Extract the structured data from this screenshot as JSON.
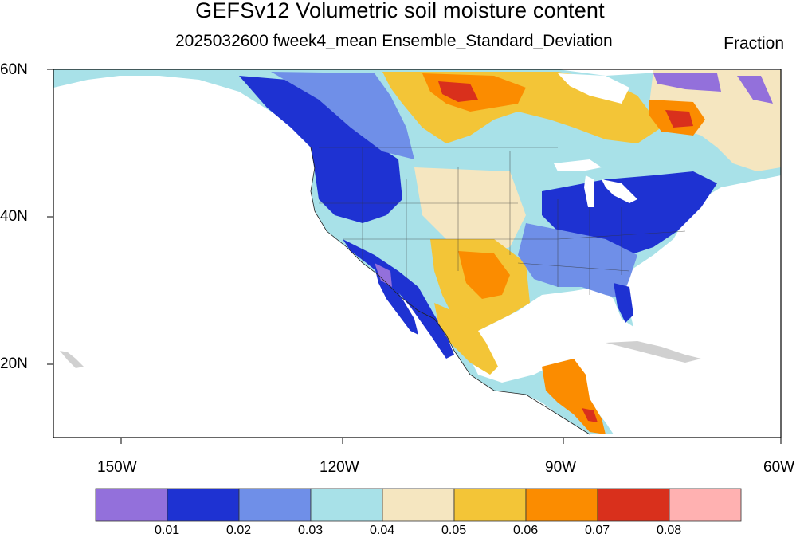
{
  "header": {
    "title": "GEFSv12 Volumetric soil moisture content",
    "subtitle": "2025032600 fweek4_mean Ensemble_Standard_Deviation",
    "units": "Fraction"
  },
  "axes": {
    "lat_labels": [
      "60N",
      "40N",
      "20N"
    ],
    "lon_labels": [
      "150W",
      "120W",
      "90W",
      "60W"
    ]
  },
  "colorbar": {
    "colors": [
      "#9370db",
      "#1e32d2",
      "#6f8fe8",
      "#a8e1e8",
      "#f5e6c0",
      "#f3c537",
      "#fb8c00",
      "#d9301c",
      "#ffb1b1"
    ],
    "labels": [
      "0.01",
      "0.02",
      "0.03",
      "0.04",
      "0.05",
      "0.06",
      "0.07",
      "0.08"
    ]
  }
}
